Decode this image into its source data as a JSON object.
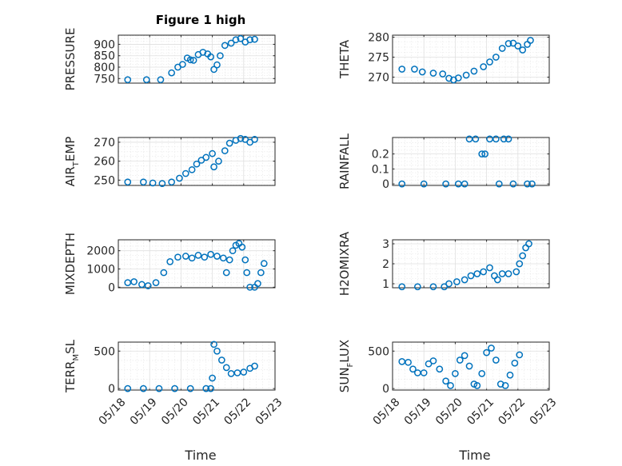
{
  "chart_data": {
    "type": "scatter",
    "title": "Figure 1 high",
    "marker_color": "#0072BD",
    "marker": "open-circle",
    "grid": "on (major + minor)",
    "xlim_days": [
      0,
      5
    ],
    "x_start_date": "05/18",
    "x_tick_labels": [
      "05/18",
      "05/19",
      "05/20",
      "05/21",
      "05/22",
      "05/23"
    ],
    "x_tick_values": [
      0,
      1,
      2,
      3,
      4,
      5
    ],
    "xlabel_bottom_left": "Time",
    "xlabel_bottom_right": "Time",
    "panels": [
      {
        "id": "pressure",
        "ylabel": "PRESSURE",
        "ylabel_sub": "",
        "ylabel_suffix": "",
        "ylim": [
          730,
          940
        ],
        "yticks": [
          750,
          800,
          850,
          900
        ],
        "yticklabels": [
          "750",
          "800",
          "850",
          "900"
        ],
        "points": [
          [
            0.3,
            745
          ],
          [
            0.9,
            745
          ],
          [
            1.35,
            745
          ],
          [
            1.7,
            775
          ],
          [
            1.9,
            800
          ],
          [
            2.05,
            812
          ],
          [
            2.2,
            840
          ],
          [
            2.3,
            832
          ],
          [
            2.4,
            830
          ],
          [
            2.55,
            855
          ],
          [
            2.7,
            865
          ],
          [
            2.85,
            858
          ],
          [
            2.95,
            845
          ],
          [
            3.05,
            790
          ],
          [
            3.15,
            810
          ],
          [
            3.25,
            850
          ],
          [
            3.4,
            895
          ],
          [
            3.6,
            905
          ],
          [
            3.75,
            920
          ],
          [
            3.9,
            925
          ],
          [
            4.05,
            910
          ],
          [
            4.2,
            920
          ],
          [
            4.35,
            922
          ]
        ]
      },
      {
        "id": "theta",
        "ylabel": "THETA",
        "ylabel_sub": "",
        "ylabel_suffix": "",
        "ylim": [
          268.5,
          280.5
        ],
        "yticks": [
          270,
          275,
          280
        ],
        "yticklabels": [
          "270",
          "275",
          "280"
        ],
        "points": [
          [
            0.3,
            272
          ],
          [
            0.7,
            272
          ],
          [
            0.95,
            271.3
          ],
          [
            1.3,
            271
          ],
          [
            1.6,
            270.8
          ],
          [
            1.8,
            269.7
          ],
          [
            1.95,
            269.3
          ],
          [
            2.1,
            269.8
          ],
          [
            2.35,
            270.5
          ],
          [
            2.6,
            271.5
          ],
          [
            2.9,
            272.6
          ],
          [
            3.1,
            273.8
          ],
          [
            3.3,
            275
          ],
          [
            3.5,
            277.2
          ],
          [
            3.7,
            278.4
          ],
          [
            3.85,
            278.5
          ],
          [
            4.0,
            277.8
          ],
          [
            4.15,
            276.8
          ],
          [
            4.3,
            278.2
          ],
          [
            4.4,
            279.2
          ]
        ]
      },
      {
        "id": "air_temp",
        "ylabel": "AIR",
        "ylabel_sub": "T",
        "ylabel_suffix": "EMP",
        "ylim": [
          247.2,
          272.5
        ],
        "yticks": [
          250,
          260,
          270
        ],
        "yticklabels": [
          "250",
          "260",
          "270"
        ],
        "points": [
          [
            0.3,
            249
          ],
          [
            0.8,
            249
          ],
          [
            1.1,
            248.5
          ],
          [
            1.4,
            248.2
          ],
          [
            1.7,
            249
          ],
          [
            1.95,
            251
          ],
          [
            2.15,
            253.5
          ],
          [
            2.35,
            255.5
          ],
          [
            2.5,
            258.5
          ],
          [
            2.65,
            260.5
          ],
          [
            2.8,
            262
          ],
          [
            3.0,
            264
          ],
          [
            3.05,
            257
          ],
          [
            3.2,
            260
          ],
          [
            3.4,
            265.5
          ],
          [
            3.55,
            269.5
          ],
          [
            3.75,
            271
          ],
          [
            3.9,
            272
          ],
          [
            4.05,
            271.5
          ],
          [
            4.2,
            270
          ],
          [
            4.35,
            271.5
          ]
        ]
      },
      {
        "id": "rainfall",
        "ylabel": "RAINFALL",
        "ylabel_sub": "",
        "ylabel_suffix": "",
        "ylim": [
          -0.01,
          0.31
        ],
        "yticks": [
          0,
          0.1,
          0.2
        ],
        "yticklabels": [
          "0",
          "0.1",
          "0.2"
        ],
        "points": [
          [
            0.3,
            0
          ],
          [
            1.0,
            0
          ],
          [
            1.7,
            0
          ],
          [
            2.1,
            0
          ],
          [
            2.3,
            0
          ],
          [
            2.45,
            0.3
          ],
          [
            2.65,
            0.3
          ],
          [
            2.85,
            0.2
          ],
          [
            2.95,
            0.2
          ],
          [
            3.1,
            0.3
          ],
          [
            3.3,
            0.3
          ],
          [
            3.4,
            0
          ],
          [
            3.55,
            0.3
          ],
          [
            3.7,
            0.3
          ],
          [
            3.85,
            0
          ],
          [
            4.3,
            0
          ],
          [
            4.45,
            0
          ]
        ]
      },
      {
        "id": "mixdepth",
        "ylabel": "MIXDEPTH",
        "ylabel_sub": "",
        "ylabel_suffix": "",
        "ylim": [
          -30,
          2600
        ],
        "yticks": [
          0,
          1000,
          2000
        ],
        "yticklabels": [
          "0",
          "1000",
          "2000"
        ],
        "points": [
          [
            0.3,
            250
          ],
          [
            0.5,
            300
          ],
          [
            0.75,
            150
          ],
          [
            0.95,
            80
          ],
          [
            1.2,
            250
          ],
          [
            1.45,
            800
          ],
          [
            1.65,
            1400
          ],
          [
            1.9,
            1650
          ],
          [
            2.15,
            1700
          ],
          [
            2.35,
            1600
          ],
          [
            2.55,
            1750
          ],
          [
            2.75,
            1650
          ],
          [
            2.95,
            1800
          ],
          [
            3.15,
            1700
          ],
          [
            3.35,
            1600
          ],
          [
            3.45,
            800
          ],
          [
            3.55,
            1500
          ],
          [
            3.65,
            2000
          ],
          [
            3.75,
            2300
          ],
          [
            3.85,
            2400
          ],
          [
            3.95,
            2200
          ],
          [
            4.05,
            1500
          ],
          [
            4.1,
            800
          ],
          [
            4.2,
            0
          ],
          [
            4.35,
            0
          ],
          [
            4.45,
            200
          ],
          [
            4.55,
            800
          ],
          [
            4.65,
            1300
          ]
        ]
      },
      {
        "id": "h2omixra",
        "ylabel": "H2OMIXRA",
        "ylabel_sub": "",
        "ylabel_suffix": "",
        "ylim": [
          0.8,
          3.2
        ],
        "yticks": [
          1,
          2,
          3
        ],
        "yticklabels": [
          "1",
          "2",
          "3"
        ],
        "points": [
          [
            0.3,
            0.85
          ],
          [
            0.8,
            0.85
          ],
          [
            1.3,
            0.85
          ],
          [
            1.65,
            0.85
          ],
          [
            1.8,
            1.0
          ],
          [
            2.05,
            1.1
          ],
          [
            2.3,
            1.2
          ],
          [
            2.5,
            1.4
          ],
          [
            2.7,
            1.5
          ],
          [
            2.9,
            1.6
          ],
          [
            3.1,
            1.8
          ],
          [
            3.25,
            1.4
          ],
          [
            3.35,
            1.2
          ],
          [
            3.5,
            1.5
          ],
          [
            3.7,
            1.5
          ],
          [
            3.95,
            1.6
          ],
          [
            4.05,
            2.0
          ],
          [
            4.15,
            2.4
          ],
          [
            4.25,
            2.8
          ],
          [
            4.35,
            3.0
          ]
        ]
      },
      {
        "id": "terr_msl",
        "ylabel": "TERR",
        "ylabel_sub": "M",
        "ylabel_suffix": "SL",
        "ylim": [
          -20,
          620
        ],
        "yticks": [
          0,
          500
        ],
        "yticklabels": [
          "0",
          "500"
        ],
        "points": [
          [
            0.3,
            0
          ],
          [
            0.8,
            0
          ],
          [
            1.3,
            0
          ],
          [
            1.8,
            0
          ],
          [
            2.3,
            0
          ],
          [
            2.8,
            0
          ],
          [
            2.95,
            0
          ],
          [
            3.0,
            140
          ],
          [
            3.05,
            590
          ],
          [
            3.15,
            500
          ],
          [
            3.3,
            380
          ],
          [
            3.45,
            280
          ],
          [
            3.6,
            200
          ],
          [
            3.8,
            210
          ],
          [
            4.0,
            220
          ],
          [
            4.2,
            270
          ],
          [
            4.35,
            300
          ]
        ]
      },
      {
        "id": "sun_flux",
        "ylabel": "SUN",
        "ylabel_sub": "F",
        "ylabel_suffix": "LUX",
        "ylim": [
          -20,
          620
        ],
        "yticks": [
          0,
          500
        ],
        "yticklabels": [
          "0",
          "500"
        ],
        "points": [
          [
            0.3,
            360
          ],
          [
            0.5,
            350
          ],
          [
            0.65,
            260
          ],
          [
            0.8,
            210
          ],
          [
            1.0,
            210
          ],
          [
            1.15,
            330
          ],
          [
            1.3,
            370
          ],
          [
            1.5,
            260
          ],
          [
            1.7,
            100
          ],
          [
            1.85,
            40
          ],
          [
            2.0,
            200
          ],
          [
            2.15,
            380
          ],
          [
            2.3,
            440
          ],
          [
            2.45,
            300
          ],
          [
            2.6,
            60
          ],
          [
            2.7,
            40
          ],
          [
            2.85,
            200
          ],
          [
            3.0,
            480
          ],
          [
            3.15,
            540
          ],
          [
            3.3,
            380
          ],
          [
            3.45,
            60
          ],
          [
            3.6,
            40
          ],
          [
            3.75,
            180
          ],
          [
            3.9,
            340
          ],
          [
            4.05,
            450
          ]
        ]
      }
    ]
  }
}
